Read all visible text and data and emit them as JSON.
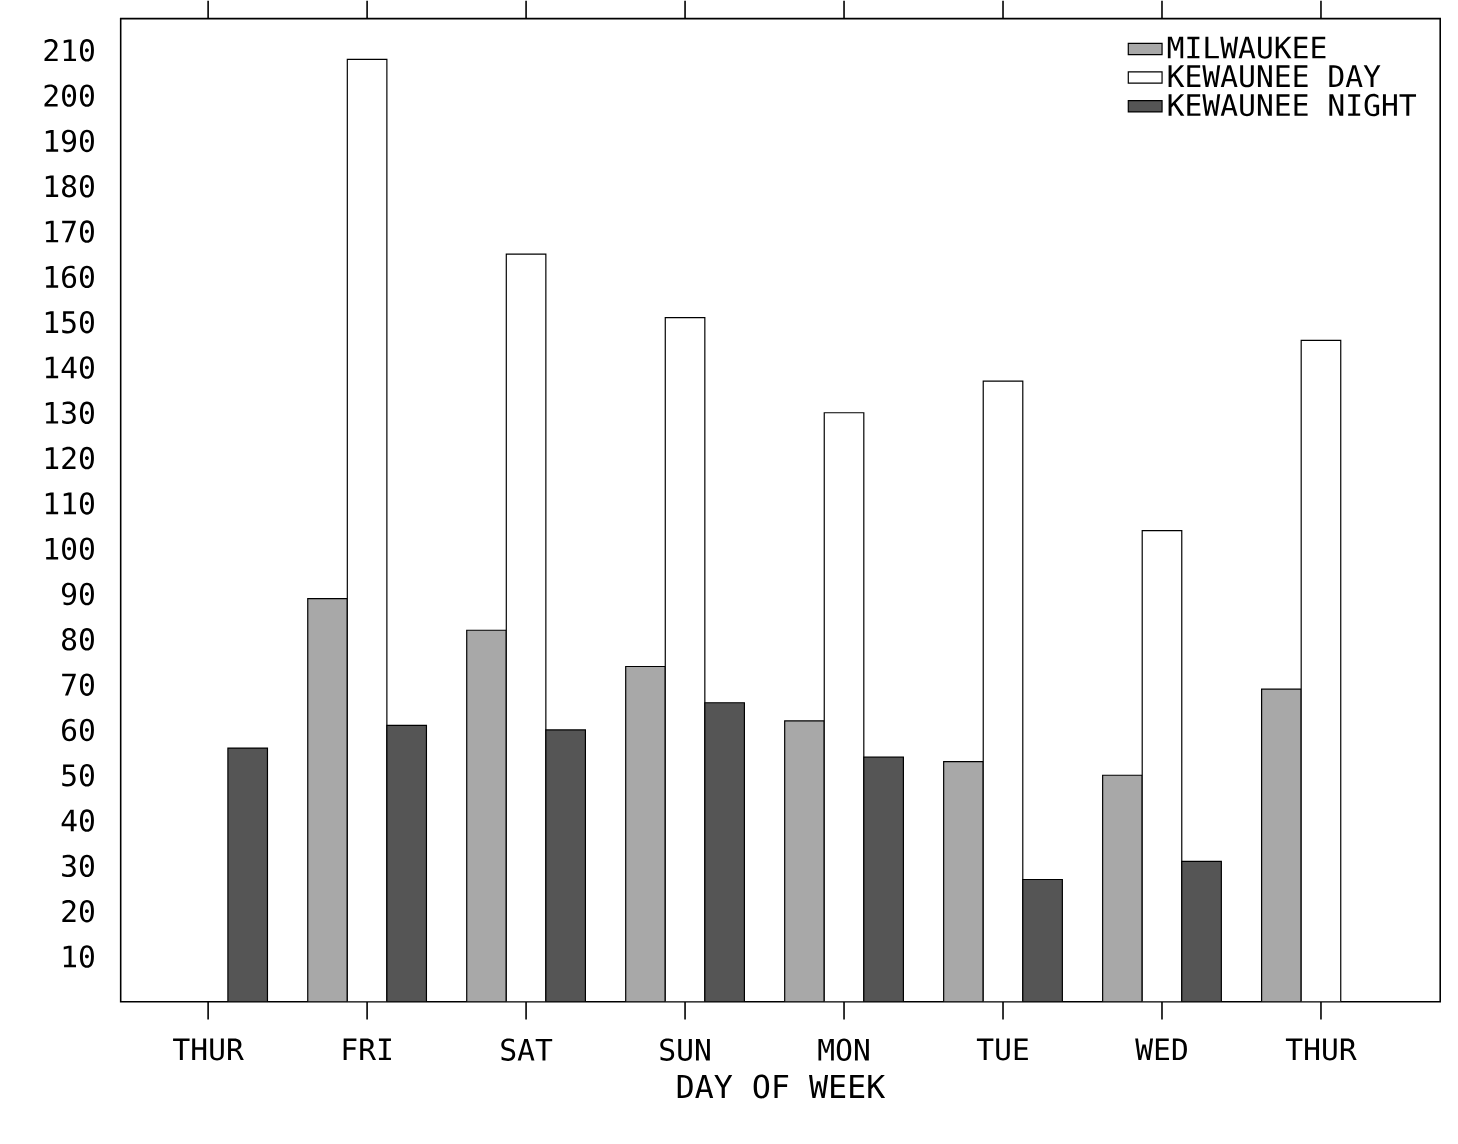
{
  "chart_data": {
    "type": "bar",
    "xlabel": "DAY OF WEEK",
    "categories": [
      "THUR",
      "FRI",
      "SAT",
      "SUN",
      "MON",
      "TUE",
      "WED",
      "THUR"
    ],
    "series": [
      {
        "name": "MILWAUKEE",
        "color": "#a8a8a8",
        "values": [
          null,
          89,
          82,
          74,
          62,
          53,
          50,
          69
        ]
      },
      {
        "name": "KEWAUNEE DAY",
        "color": "#ffffff",
        "values": [
          null,
          208,
          165,
          151,
          130,
          137,
          104,
          146
        ]
      },
      {
        "name": "KEWAUNEE NIGHT",
        "color": "#555555",
        "values": [
          56,
          61,
          60,
          66,
          54,
          27,
          31,
          null
        ]
      }
    ],
    "ylim": [
      0,
      217
    ],
    "yticks": [
      10,
      20,
      30,
      40,
      50,
      60,
      70,
      80,
      90,
      100,
      110,
      120,
      130,
      140,
      150,
      160,
      170,
      180,
      190,
      200,
      210
    ],
    "grid": false,
    "legend": "top right"
  }
}
